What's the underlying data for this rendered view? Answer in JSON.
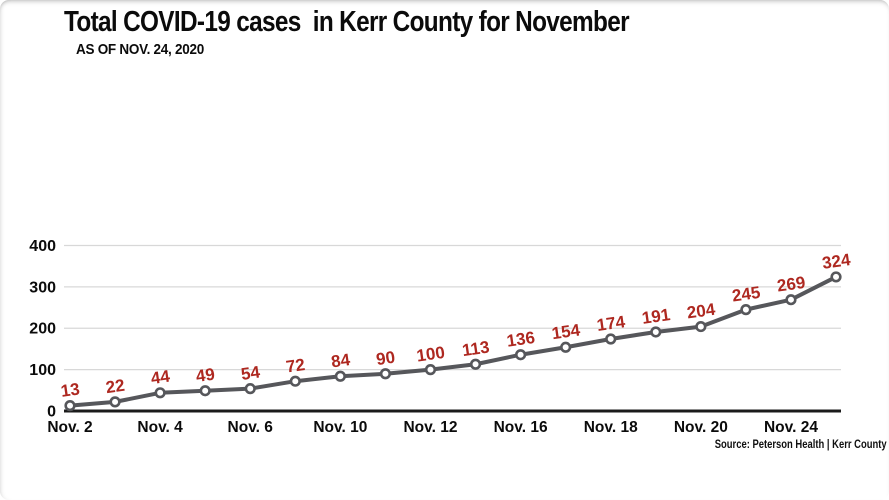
{
  "header": {
    "title": "Total COVID-19 cases  in Kerr County for November",
    "subtitle": "AS OF NOV. 24, 2020"
  },
  "footer": {
    "source": "Source: Peterson Health | Kerr County"
  },
  "colors": {
    "label_red": "#ae2820",
    "line_gray": "#56575b",
    "grid_gray": "#d8d8d8",
    "baseline_black": "#1b1b1b",
    "text_black": "#0b0b0b",
    "background": "#ffffff"
  },
  "chart_data": {
    "type": "line",
    "title": "Total COVID-19 cases in Kerr County for November",
    "subtitle": "AS OF NOV. 24, 2020",
    "source": "Source: Peterson Health | Kerr County",
    "values": [
      13,
      22,
      44,
      49,
      54,
      72,
      84,
      90,
      100,
      113,
      136,
      154,
      174,
      191,
      204,
      245,
      269,
      324
    ],
    "point_labels": [
      "13",
      "22",
      "44",
      "49",
      "54",
      "72",
      "84",
      "90",
      "100",
      "113",
      "136",
      "154",
      "174",
      "191",
      "204",
      "245",
      "269",
      "324"
    ],
    "x_tick_labels": [
      "Nov. 2",
      "Nov. 4",
      "Nov. 6",
      "Nov. 10",
      "Nov. 12",
      "Nov. 16",
      "Nov. 18",
      "Nov. 20",
      "Nov. 24"
    ],
    "x_tick_indices": [
      0,
      2,
      4,
      6,
      8,
      10,
      12,
      14,
      16
    ],
    "y_ticks": [
      0,
      100,
      200,
      300,
      400
    ],
    "ylim": [
      0,
      400
    ],
    "xlabel": "",
    "ylabel": "",
    "grid": true,
    "legend": false,
    "marker": "open-circle",
    "line_color": "#56575b",
    "label_color": "#ae2820"
  }
}
